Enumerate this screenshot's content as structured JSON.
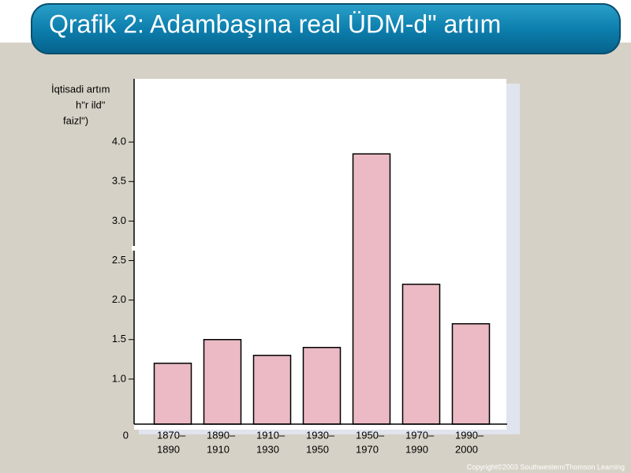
{
  "title": "Qrafik  2: Adambaşına real ÜDM-dʺ artım",
  "footer": "Copyright©2003  Southwestern/Thomson Learning",
  "chart_data": {
    "type": "bar",
    "y_label": [
      "İqtisadi artım",
      "hʺr ildʺ",
      "faizlʺ)"
    ],
    "categories": [
      [
        "1870–",
        "1890"
      ],
      [
        "1890–",
        "1910"
      ],
      [
        "1910–",
        "1930"
      ],
      [
        "1930–",
        "1950"
      ],
      [
        "1950–",
        "1970"
      ],
      [
        "1970–",
        "1990"
      ],
      [
        "1990–",
        "2000"
      ]
    ],
    "values": [
      1.2,
      1.5,
      1.3,
      1.4,
      3.85,
      2.2,
      1.7
    ],
    "color": "#ebbac5",
    "ylim": [
      0.43,
      4.8
    ],
    "yticks": [
      {
        "value": 1,
        "label": "1.0"
      },
      {
        "value": 1.5,
        "label": "1.5"
      },
      {
        "value": 2,
        "label": "2.0"
      },
      {
        "value": 2.5,
        "label": "2.5"
      },
      {
        "value": 3,
        "label": "3.0"
      },
      {
        "value": 3.5,
        "label": "3.5"
      },
      {
        "value": 4,
        "label": "4.0"
      }
    ],
    "y_origin_label": "0",
    "axis_break": true
  }
}
